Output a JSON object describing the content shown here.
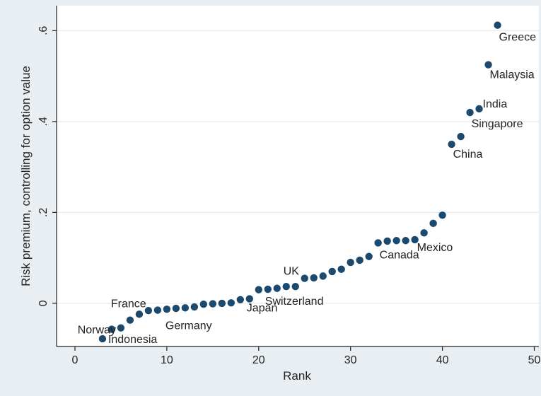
{
  "chart_data": {
    "type": "scatter",
    "title": "",
    "xlabel": "Rank",
    "ylabel": "Risk premium, controlling for option value",
    "xlim": [
      -2,
      50.5
    ],
    "ylim": [
      -0.095,
      0.655
    ],
    "xticks": [
      0,
      10,
      20,
      30,
      40,
      50
    ],
    "xtick_labels": [
      "0",
      "10",
      "20",
      "30",
      "40",
      "50"
    ],
    "yticks": [
      0,
      0.2,
      0.4,
      0.6
    ],
    "ytick_labels": [
      "0",
      ".2",
      ".4",
      ".6"
    ],
    "grid": "horizontal",
    "legend": "none",
    "colors": {
      "background": "#e9eef2",
      "plot_area": "#ffffff",
      "marker": "#1c4a6e",
      "grid": "#e4eaee",
      "text": "#222222"
    },
    "points": [
      {
        "x": 3,
        "y": -0.078,
        "label": "Indonesia"
      },
      {
        "x": 4,
        "y": -0.057,
        "label": "Norway"
      },
      {
        "x": 5,
        "y": -0.054,
        "label": ""
      },
      {
        "x": 6,
        "y": -0.037,
        "label": ""
      },
      {
        "x": 7,
        "y": -0.024,
        "label": "France"
      },
      {
        "x": 8,
        "y": -0.016,
        "label": ""
      },
      {
        "x": 9,
        "y": -0.015,
        "label": ""
      },
      {
        "x": 10,
        "y": -0.013,
        "label": "Germany"
      },
      {
        "x": 11,
        "y": -0.011,
        "label": ""
      },
      {
        "x": 12,
        "y": -0.01,
        "label": ""
      },
      {
        "x": 13,
        "y": -0.008,
        "label": ""
      },
      {
        "x": 14,
        "y": -0.002,
        "label": ""
      },
      {
        "x": 15,
        "y": -0.001,
        "label": ""
      },
      {
        "x": 16,
        "y": 0.0,
        "label": ""
      },
      {
        "x": 17,
        "y": 0.001,
        "label": ""
      },
      {
        "x": 18,
        "y": 0.008,
        "label": ""
      },
      {
        "x": 19,
        "y": 0.01,
        "label": "Japan"
      },
      {
        "x": 20,
        "y": 0.03,
        "label": ""
      },
      {
        "x": 21,
        "y": 0.031,
        "label": "Switzerland"
      },
      {
        "x": 22,
        "y": 0.033,
        "label": ""
      },
      {
        "x": 23,
        "y": 0.037,
        "label": ""
      },
      {
        "x": 24,
        "y": 0.037,
        "label": ""
      },
      {
        "x": 25,
        "y": 0.055,
        "label": "UK"
      },
      {
        "x": 26,
        "y": 0.056,
        "label": ""
      },
      {
        "x": 27,
        "y": 0.06,
        "label": ""
      },
      {
        "x": 28,
        "y": 0.07,
        "label": ""
      },
      {
        "x": 29,
        "y": 0.075,
        "label": ""
      },
      {
        "x": 30,
        "y": 0.09,
        "label": ""
      },
      {
        "x": 31,
        "y": 0.095,
        "label": ""
      },
      {
        "x": 32,
        "y": 0.103,
        "label": ""
      },
      {
        "x": 33,
        "y": 0.133,
        "label": "Canada"
      },
      {
        "x": 34,
        "y": 0.137,
        "label": ""
      },
      {
        "x": 35,
        "y": 0.138,
        "label": ""
      },
      {
        "x": 36,
        "y": 0.138,
        "label": ""
      },
      {
        "x": 37,
        "y": 0.14,
        "label": "Mexico"
      },
      {
        "x": 38,
        "y": 0.155,
        "label": ""
      },
      {
        "x": 39,
        "y": 0.176,
        "label": ""
      },
      {
        "x": 40,
        "y": 0.194,
        "label": ""
      },
      {
        "x": 41,
        "y": 0.35,
        "label": "China"
      },
      {
        "x": 42,
        "y": 0.367,
        "label": ""
      },
      {
        "x": 43,
        "y": 0.42,
        "label": "Singapore"
      },
      {
        "x": 44,
        "y": 0.428,
        "label": "India"
      },
      {
        "x": 45,
        "y": 0.525,
        "label": "Malaysia"
      },
      {
        "x": 46,
        "y": 0.612,
        "label": "Greece"
      }
    ]
  }
}
